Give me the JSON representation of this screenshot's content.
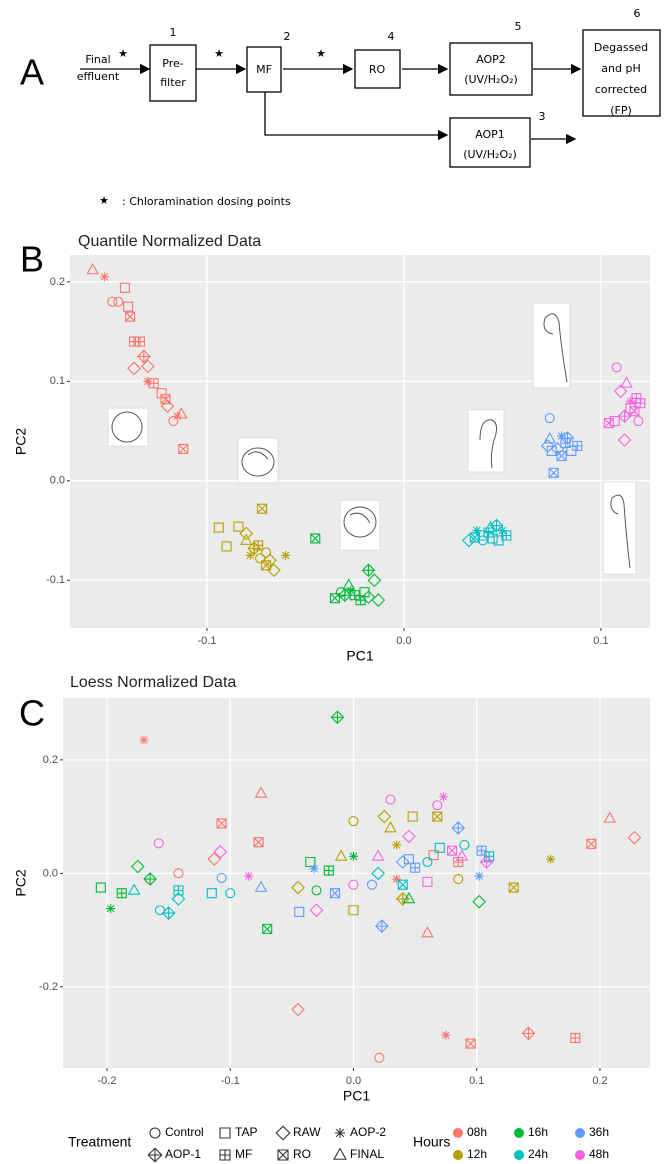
{
  "panels": [
    "A",
    "B",
    "C"
  ],
  "diagram": {
    "input": [
      "Final",
      "effluent"
    ],
    "nodes": [
      {
        "number": "1",
        "lines": [
          "Pre-",
          "filter"
        ]
      },
      {
        "number": "2",
        "lines": [
          "MF"
        ]
      },
      {
        "number": "4",
        "lines": [
          "RO"
        ]
      },
      {
        "number": "5",
        "lines": [
          "AOP2",
          "(UV/H₂O₂)"
        ]
      },
      {
        "number": "6",
        "lines": [
          "Degassed",
          "and pH",
          "corrected",
          "(FP)"
        ]
      },
      {
        "number": "3",
        "lines": [
          "AOP1",
          "(UV/H₂O₂)"
        ]
      }
    ],
    "legend": ": Chloramination dosing points"
  },
  "chart_data": [
    {
      "type": "scatter",
      "title": "Quantile Normalized Data",
      "x_label": "PC1",
      "y_label": "PC2",
      "xlim": [
        -0.1695,
        0.1249
      ],
      "ylim": [
        -0.148,
        0.227
      ],
      "xticks": [
        -0.1,
        {
          "value": 0,
          "label": "0.0"
        },
        0.1
      ],
      "yticks": [
        -0.1,
        {
          "value": 0,
          "label": "0.0"
        },
        0.1,
        0.2
      ],
      "grid": true,
      "series": [
        {
          "color": "#F8766D",
          "x": [
            -0.158,
            -0.152,
            -0.148,
            -0.145,
            -0.14,
            -0.139,
            -0.1416,
            -0.137,
            -0.134,
            -0.137,
            -0.132,
            -0.13,
            -0.13,
            -0.127,
            -0.123,
            -0.121,
            -0.12,
            -0.115,
            -0.113,
            -0.117,
            -0.112
          ],
          "y": [
            0.212,
            0.205,
            0.18,
            0.18,
            0.175,
            0.165,
            0.194,
            0.14,
            0.14,
            0.113,
            0.125,
            0.115,
            0.1,
            0.098,
            0.088,
            0.082,
            0.075,
            0.065,
            0.067,
            0.06,
            0.032
          ],
          "treatment": [
            7,
            3,
            0,
            0,
            1,
            6,
            1,
            5,
            5,
            2,
            4,
            2,
            3,
            5,
            1,
            6,
            2,
            3,
            7,
            0,
            6
          ]
        },
        {
          "color": "#B79F00",
          "x": [
            -0.094,
            -0.084,
            -0.08,
            -0.09,
            -0.072,
            -0.08,
            -0.076,
            -0.074,
            -0.07,
            -0.078,
            -0.068,
            -0.066,
            -0.07,
            -0.06,
            -0.073
          ],
          "y": [
            -0.047,
            -0.046,
            -0.053,
            -0.066,
            -0.028,
            -0.06,
            -0.068,
            -0.065,
            -0.072,
            -0.075,
            -0.08,
            -0.09,
            -0.085,
            -0.075,
            -0.078
          ],
          "treatment": [
            1,
            1,
            2,
            1,
            6,
            7,
            4,
            5,
            0,
            3,
            2,
            2,
            6,
            3,
            0
          ]
        },
        {
          "color": "#00BA38",
          "x": [
            -0.045,
            -0.032,
            -0.03,
            -0.025,
            -0.027,
            -0.02,
            -0.018,
            -0.018,
            -0.015,
            -0.013,
            -0.035,
            -0.022,
            -0.028
          ],
          "y": [
            -0.058,
            -0.112,
            -0.115,
            -0.115,
            -0.11,
            -0.112,
            -0.117,
            -0.09,
            -0.1,
            -0.12,
            -0.118,
            -0.12,
            -0.105
          ],
          "treatment": [
            6,
            0,
            4,
            5,
            3,
            1,
            2,
            4,
            2,
            2,
            6,
            5,
            7
          ]
        },
        {
          "color": "#00BFC4",
          "x": [
            0.033,
            0.037,
            0.04,
            0.044,
            0.047,
            0.05,
            0.045,
            0.04,
            0.052,
            0.048,
            0.036,
            0.043
          ],
          "y": [
            -0.06,
            -0.05,
            -0.055,
            -0.047,
            -0.045,
            -0.05,
            -0.058,
            -0.06,
            -0.055,
            -0.06,
            -0.057,
            -0.052
          ],
          "treatment": [
            2,
            3,
            1,
            7,
            4,
            3,
            1,
            0,
            5,
            1,
            6,
            5
          ]
        },
        {
          "color": "#619CFF",
          "x": [
            0.074,
            0.074,
            0.075,
            0.076,
            0.08,
            0.082,
            0.085,
            0.078,
            0.083,
            0.088,
            0.08,
            0.073
          ],
          "y": [
            0.063,
            0.042,
            0.03,
            0.008,
            0.045,
            0.038,
            0.03,
            0.032,
            0.043,
            0.035,
            0.025,
            0.035
          ],
          "treatment": [
            0,
            7,
            1,
            6,
            3,
            5,
            1,
            2,
            4,
            5,
            6,
            2
          ]
        },
        {
          "color": "#F564E3",
          "x": [
            0.108,
            0.11,
            0.113,
            0.115,
            0.118,
            0.112,
            0.107,
            0.112,
            0.117,
            0.12,
            0.104,
            0.119,
            0.115
          ],
          "y": [
            0.114,
            0.09,
            0.098,
            0.08,
            0.083,
            0.065,
            0.06,
            0.041,
            0.07,
            0.078,
            0.058,
            0.06,
            0.073
          ],
          "treatment": [
            0,
            2,
            7,
            3,
            5,
            4,
            1,
            2,
            6,
            5,
            6,
            0,
            1
          ]
        }
      ]
    },
    {
      "type": "scatter",
      "title": "Loess Normalized Data",
      "x_label": "PC1",
      "y_label": "PC2",
      "xlim": [
        -0.2357,
        0.2406
      ],
      "ylim": [
        -0.343,
        0.309
      ],
      "xticks": [
        -0.2,
        -0.1,
        {
          "value": 0,
          "label": "0.0"
        },
        0.1,
        0.2
      ],
      "yticks": [
        -0.2,
        {
          "value": 0,
          "label": "0.0"
        },
        0.2
      ],
      "grid": true,
      "shape_legend_title": "Treatment",
      "treatments": [
        "Control",
        "TAP",
        "RAW",
        "AOP-2",
        "AOP-1",
        "MF",
        "RO",
        "FINAL"
      ],
      "color_legend_title": "Hours",
      "series": [
        {
          "name": "08h",
          "color": "#F8766D",
          "x": [
            -0.17,
            -0.142,
            -0.113,
            -0.107,
            -0.075,
            -0.077,
            -0.045,
            0.021,
            0.06,
            0.075,
            0.095,
            0.142,
            0.18,
            0.193,
            0.208,
            0.228,
            0.085,
            0.035,
            0.065
          ],
          "y": [
            0.235,
            0.0,
            0.025,
            0.088,
            0.141,
            0.055,
            -0.24,
            -0.325,
            -0.105,
            -0.285,
            -0.3,
            -0.282,
            -0.29,
            0.052,
            0.097,
            0.063,
            0.02,
            -0.01,
            0.032
          ],
          "treatment": [
            3,
            0,
            2,
            6,
            7,
            6,
            2,
            0,
            7,
            3,
            6,
            4,
            5,
            6,
            7,
            2,
            5,
            3,
            1
          ]
        },
        {
          "name": "12h",
          "color": "#B79F00",
          "x": [
            0.0,
            0.03,
            0.048,
            0.035,
            0.068,
            0.085,
            0.13,
            0.16,
            0.0,
            -0.045,
            0.025,
            -0.01,
            0.04
          ],
          "y": [
            0.092,
            0.08,
            0.1,
            0.05,
            0.1,
            -0.01,
            -0.025,
            0.025,
            -0.065,
            -0.025,
            0.1,
            0.03,
            -0.045
          ],
          "treatment": [
            0,
            7,
            1,
            3,
            6,
            0,
            6,
            3,
            1,
            2,
            2,
            7,
            4
          ]
        },
        {
          "name": "16h",
          "color": "#00BA38",
          "x": [
            -0.205,
            -0.197,
            -0.188,
            -0.175,
            -0.165,
            -0.013,
            -0.07,
            -0.03,
            -0.02,
            0.0,
            0.045,
            0.102,
            -0.035
          ],
          "y": [
            -0.025,
            -0.062,
            -0.035,
            0.012,
            -0.01,
            0.275,
            -0.098,
            -0.03,
            0.005,
            0.03,
            -0.045,
            -0.05,
            0.02
          ],
          "treatment": [
            1,
            3,
            5,
            2,
            4,
            4,
            6,
            0,
            5,
            3,
            7,
            2,
            1
          ]
        },
        {
          "name": "24h",
          "color": "#00BFC4",
          "x": [
            -0.178,
            -0.157,
            -0.15,
            -0.142,
            -0.142,
            -0.115,
            0.02,
            0.06,
            0.07,
            0.09,
            0.11,
            0.04,
            -0.1
          ],
          "y": [
            -0.03,
            -0.065,
            -0.07,
            -0.03,
            -0.045,
            -0.035,
            0.0,
            0.02,
            0.045,
            0.05,
            0.03,
            -0.02,
            -0.035
          ],
          "treatment": [
            7,
            0,
            4,
            5,
            2,
            1,
            2,
            0,
            1,
            0,
            5,
            6,
            0
          ]
        },
        {
          "name": "36h",
          "color": "#619CFF",
          "x": [
            -0.107,
            -0.075,
            -0.044,
            -0.032,
            0.023,
            0.04,
            0.05,
            0.085,
            0.104,
            0.102,
            0.015,
            0.045,
            -0.015
          ],
          "y": [
            -0.008,
            -0.025,
            -0.068,
            0.008,
            -0.093,
            0.02,
            0.01,
            0.08,
            0.04,
            -0.005,
            -0.02,
            0.025,
            -0.035
          ],
          "treatment": [
            0,
            7,
            1,
            3,
            4,
            2,
            5,
            4,
            5,
            3,
            0,
            1,
            6
          ]
        },
        {
          "name": "48h",
          "color": "#F564E3",
          "x": [
            -0.158,
            -0.108,
            -0.085,
            -0.03,
            0.0,
            0.03,
            0.02,
            0.06,
            0.073,
            0.068,
            0.088,
            0.108,
            0.045,
            0.08
          ],
          "y": [
            0.053,
            0.038,
            -0.005,
            -0.065,
            -0.02,
            0.13,
            0.03,
            -0.015,
            0.135,
            0.12,
            0.03,
            0.02,
            0.065,
            0.04
          ],
          "treatment": [
            0,
            2,
            3,
            2,
            0,
            0,
            7,
            1,
            3,
            0,
            7,
            4,
            2,
            6
          ]
        }
      ]
    }
  ]
}
